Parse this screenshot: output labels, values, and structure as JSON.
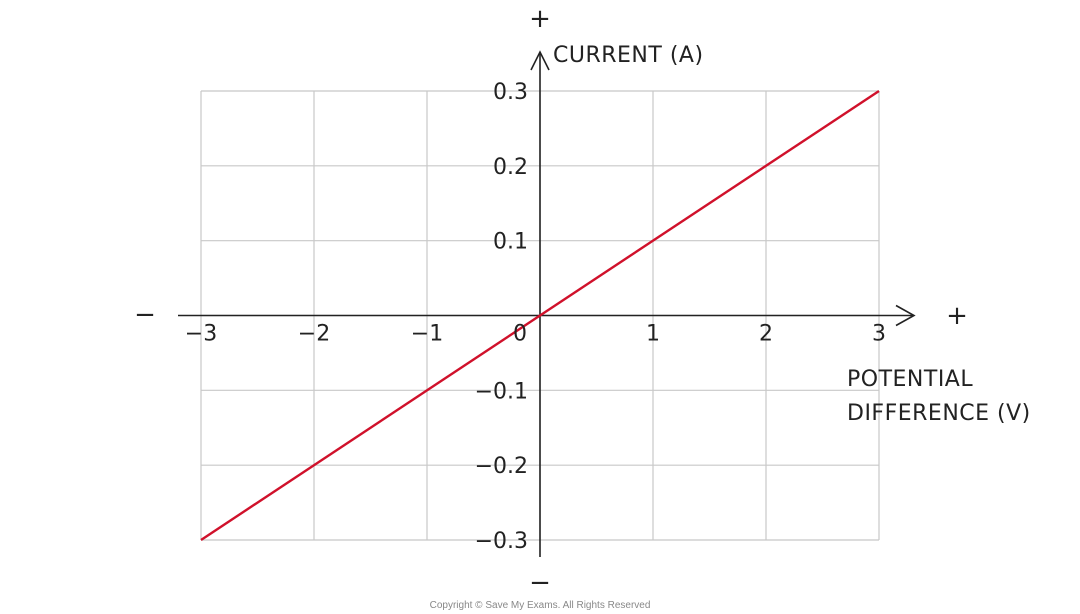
{
  "chart_data": {
    "type": "line",
    "x": [
      -3,
      3
    ],
    "series": [
      {
        "values": [
          -0.3,
          0.3
        ],
        "color": "#d0112b"
      }
    ],
    "xlabel_lines": [
      "POTENTIAL",
      "DIFFERENCE (V)"
    ],
    "ylabel": "CURRENT  (A)",
    "xlim": [
      -3,
      3
    ],
    "ylim": [
      -0.3,
      0.3
    ],
    "x_ticks": [
      -3,
      -2,
      -1,
      0,
      1,
      2,
      3
    ],
    "y_ticks": [
      -0.3,
      -0.2,
      -0.1,
      0.1,
      0.2,
      0.3
    ],
    "x_tick_labels": [
      "−3",
      "−2",
      "−1",
      "0",
      "1",
      "2",
      "3"
    ],
    "y_tick_labels": [
      "−0.3",
      "−0.2",
      "−0.1",
      "0.1",
      "0.2",
      "0.3"
    ],
    "grid": true,
    "axis_signs": {
      "x_positive": "+",
      "x_negative": "−",
      "y_positive": "+",
      "y_negative": "−"
    }
  },
  "copyright": "Copyright © Save My Exams. All Rights Reserved",
  "colors": {
    "grid": "#c8c8c8",
    "axis": "#222222",
    "line": "#d0112b"
  }
}
